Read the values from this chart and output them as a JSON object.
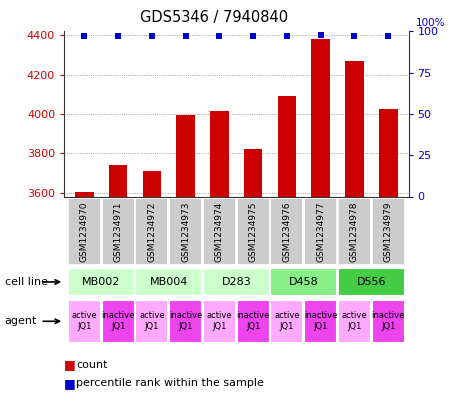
{
  "title": "GDS5346 / 7940840",
  "samples": [
    "GSM1234970",
    "GSM1234971",
    "GSM1234972",
    "GSM1234973",
    "GSM1234974",
    "GSM1234975",
    "GSM1234976",
    "GSM1234977",
    "GSM1234978",
    "GSM1234979"
  ],
  "counts": [
    3605,
    3740,
    3710,
    3995,
    4015,
    3820,
    4090,
    4380,
    4270,
    4025
  ],
  "percentiles": [
    97,
    97,
    97,
    97,
    97,
    97,
    97,
    98,
    97,
    97
  ],
  "ylim_left": [
    3580,
    4420
  ],
  "ylim_right": [
    0,
    100
  ],
  "yticks_left": [
    3600,
    3800,
    4000,
    4200,
    4400
  ],
  "yticks_right": [
    0,
    25,
    50,
    75,
    100
  ],
  "cell_lines": [
    {
      "label": "MB002",
      "cols": [
        0,
        1
      ],
      "color": "#ccffcc"
    },
    {
      "label": "MB004",
      "cols": [
        2,
        3
      ],
      "color": "#ccffcc"
    },
    {
      "label": "D283",
      "cols": [
        4,
        5
      ],
      "color": "#ccffcc"
    },
    {
      "label": "D458",
      "cols": [
        6,
        7
      ],
      "color": "#88ee88"
    },
    {
      "label": "D556",
      "cols": [
        8,
        9
      ],
      "color": "#44cc44"
    }
  ],
  "agents": [
    {
      "label": "active\nJQ1",
      "col": 0,
      "color": "#ffaaff"
    },
    {
      "label": "inactive\nJQ1",
      "col": 1,
      "color": "#ee44ee"
    },
    {
      "label": "active\nJQ1",
      "col": 2,
      "color": "#ffaaff"
    },
    {
      "label": "inactive\nJQ1",
      "col": 3,
      "color": "#ee44ee"
    },
    {
      "label": "active\nJQ1",
      "col": 4,
      "color": "#ffaaff"
    },
    {
      "label": "inactive\nJQ1",
      "col": 5,
      "color": "#ee44ee"
    },
    {
      "label": "active\nJQ1",
      "col": 6,
      "color": "#ffaaff"
    },
    {
      "label": "inactive\nJQ1",
      "col": 7,
      "color": "#ee44ee"
    },
    {
      "label": "active\nJQ1",
      "col": 8,
      "color": "#ffaaff"
    },
    {
      "label": "inactive\nJQ1",
      "col": 9,
      "color": "#ee44ee"
    }
  ],
  "bar_color": "#cc0000",
  "dot_color": "#0000cc",
  "bar_width": 0.55,
  "grid_color": "#888888",
  "left_tick_color": "#cc0000",
  "right_tick_color": "#0000cc",
  "sample_bg": "#cccccc",
  "fig_bg": "#ffffff"
}
